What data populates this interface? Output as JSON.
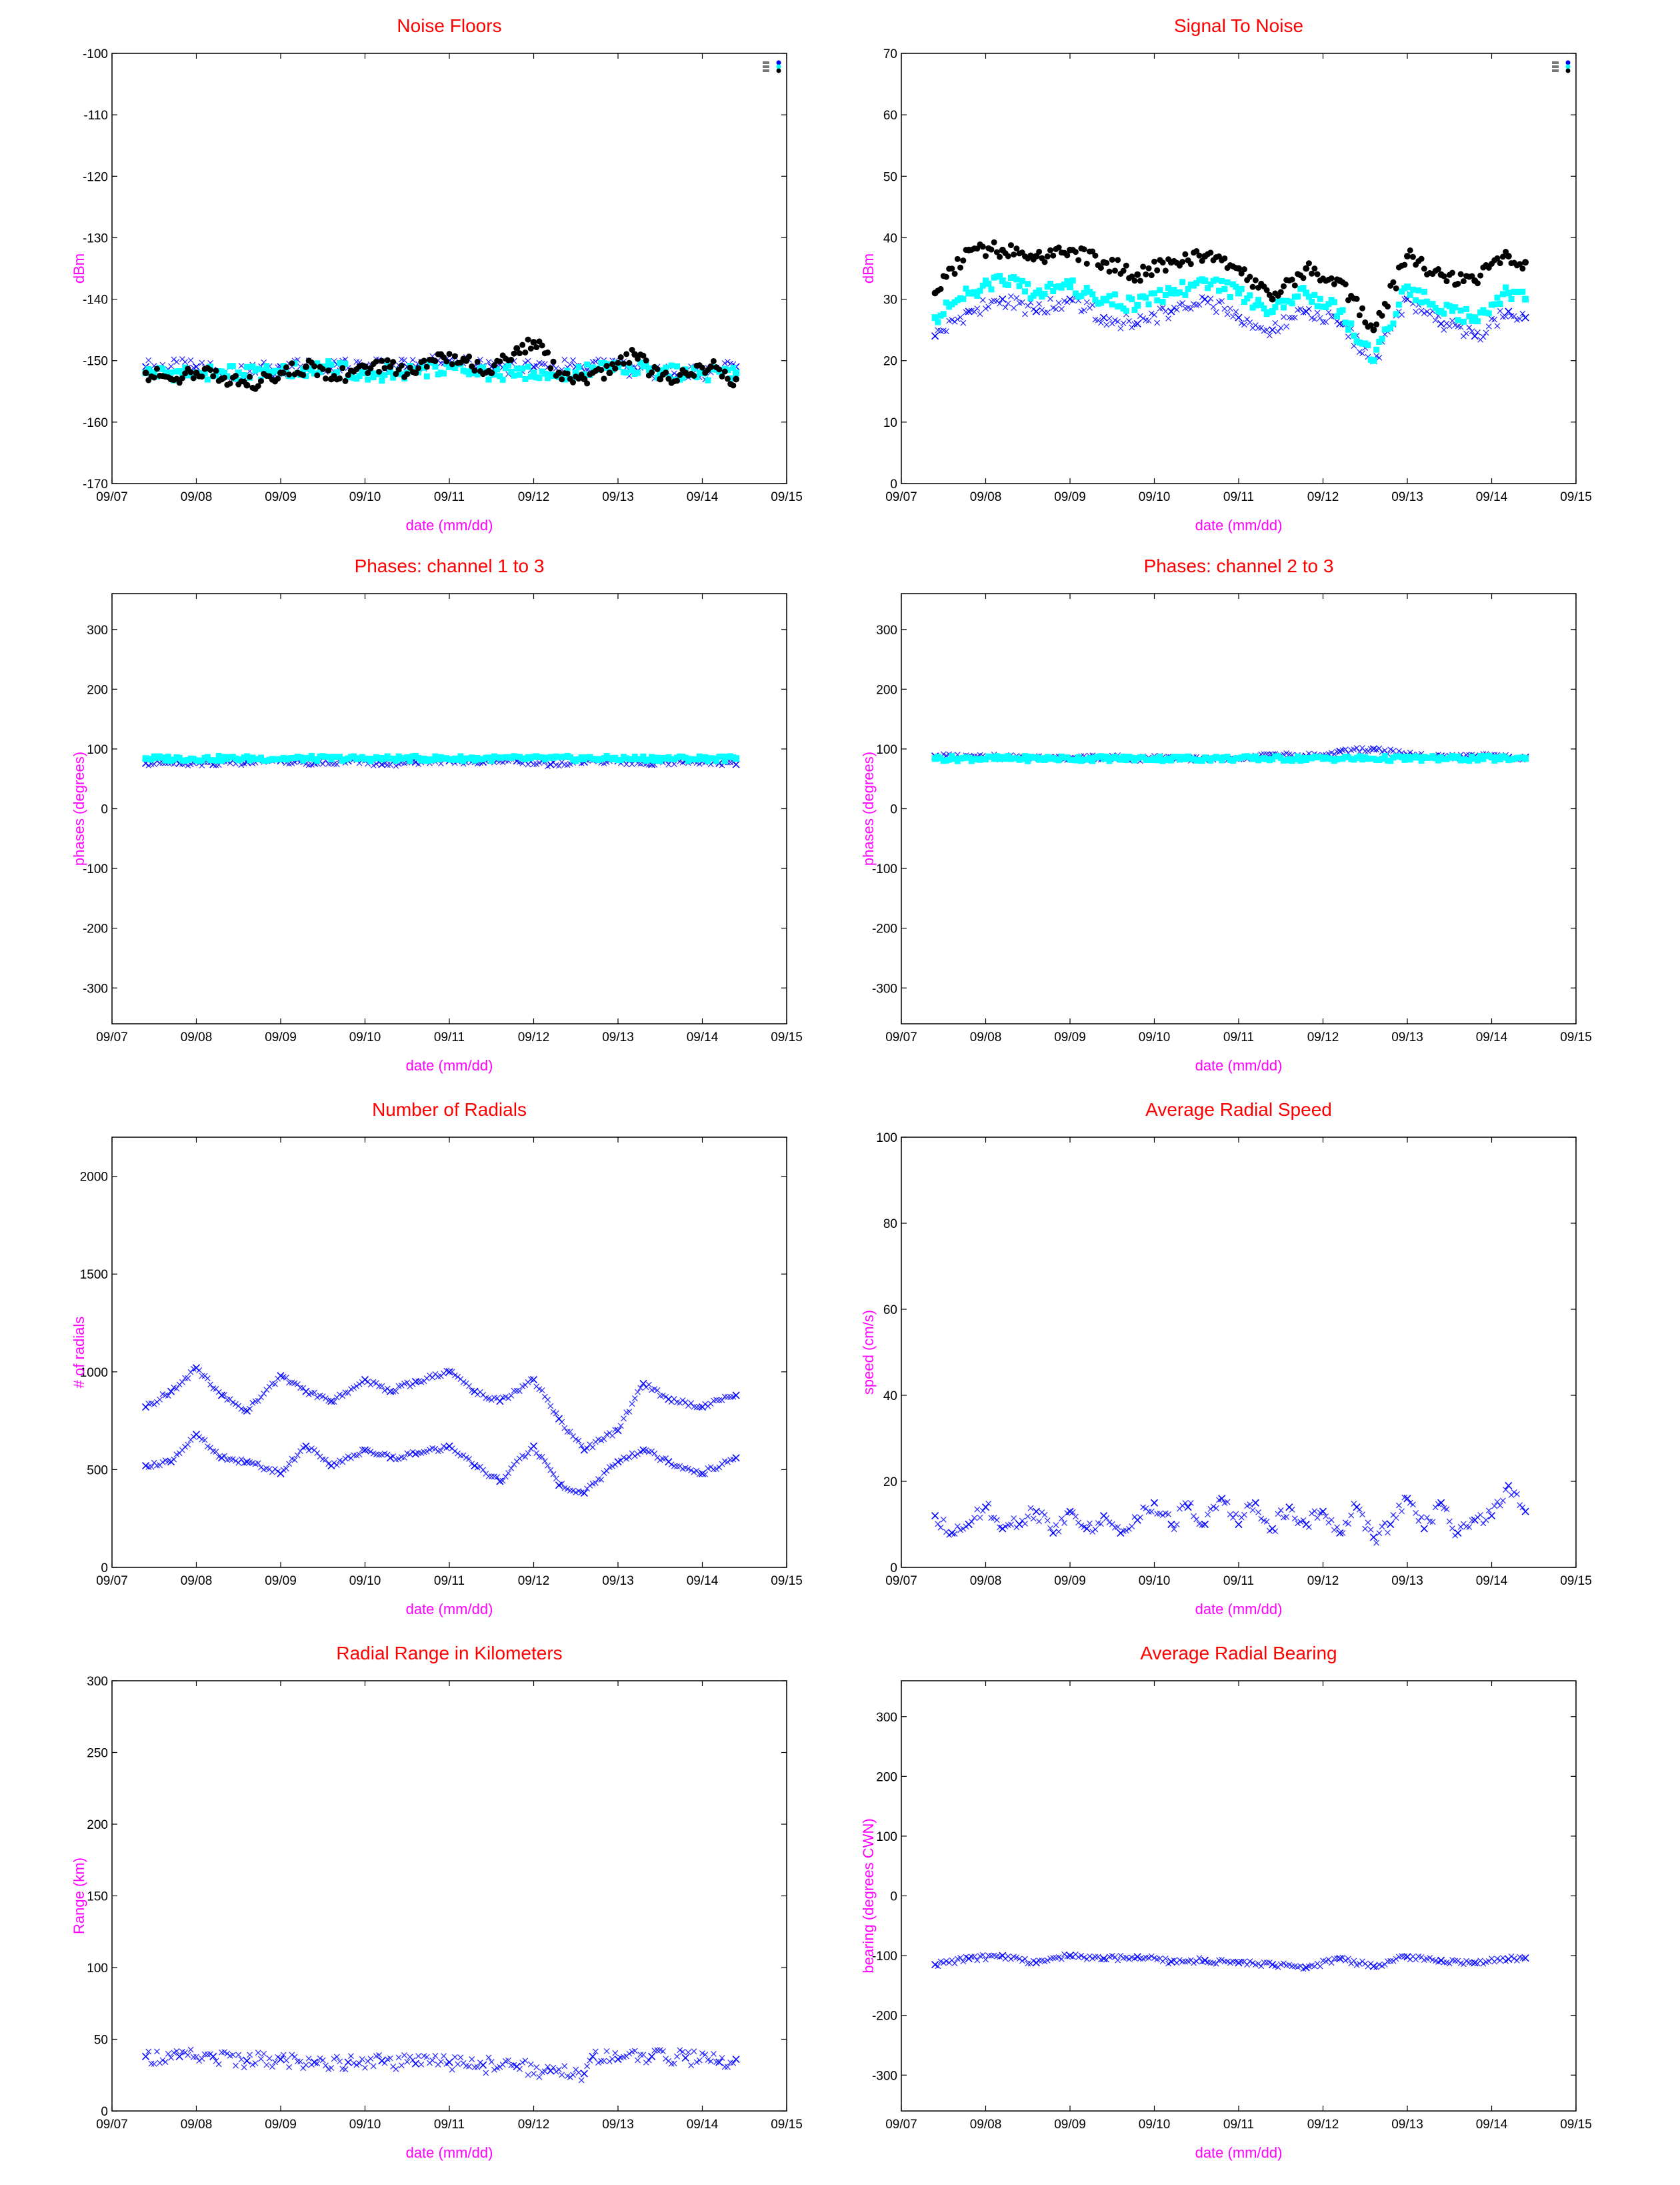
{
  "colors": {
    "title": "#ff0000",
    "axis_label": "#ff00ff",
    "black_series": "#000000",
    "cyan_series": "#00ffff",
    "blue_series": "#0000ff"
  },
  "chart_data": [
    {
      "type": "scatter",
      "title": "Noise Floors",
      "xlabel": "date (mm/dd)",
      "ylabel": "dBm",
      "xlim": [
        "09/07",
        "09/15"
      ],
      "xticks": [
        "09/07",
        "09/08",
        "09/09",
        "09/10",
        "09/11",
        "09/12",
        "09/13",
        "09/14",
        "09/15"
      ],
      "ylim": [
        -170,
        -100
      ],
      "yticks": [
        -170,
        -160,
        -150,
        -140,
        -130,
        -120,
        -110,
        -100
      ],
      "grid": false,
      "legend": "top-right",
      "series": [
        {
          "color": "#0000ff",
          "marker": "x",
          "x": [
            "09/07.4",
            "09/08",
            "09/08.5",
            "09/09",
            "09/09.5",
            "09/10",
            "09/10.5",
            "09/11",
            "09/11.5",
            "09/12",
            "09/12.5",
            "09/13",
            "09/13.5",
            "09/14",
            "09/14.4"
          ],
          "y": [
            -151,
            -151,
            -152,
            -151,
            -151,
            -151,
            -151,
            -150,
            -151,
            -151,
            -151,
            -151,
            -152,
            -152,
            -151
          ]
        },
        {
          "color": "#00ffff",
          "marker": "s",
          "x": [
            "09/07.4",
            "09/08",
            "09/08.5",
            "09/09",
            "09/09.5",
            "09/10",
            "09/10.5",
            "09/11",
            "09/11.5",
            "09/12",
            "09/12.5",
            "09/13",
            "09/13.5",
            "09/14",
            "09/14.4"
          ],
          "y": [
            -152,
            -152,
            -152,
            -152,
            -151,
            -152,
            -152,
            -151,
            -152,
            -152,
            -152,
            -151,
            -152,
            -152,
            -152
          ]
        },
        {
          "color": "#000000",
          "marker": "o",
          "x": [
            "09/07.4",
            "09/07.7",
            "09/08",
            "09/08.3",
            "09/08.6",
            "09/09",
            "09/09.3",
            "09/09.6",
            "09/10",
            "09/10.3",
            "09/10.6",
            "09/10.9",
            "09/11.2",
            "09/11.5",
            "09/11.8",
            "09/12",
            "09/12.3",
            "09/12.6",
            "09/12.9",
            "09/13.2",
            "09/13.5",
            "09/13.8",
            "09/14.1",
            "09/14.4"
          ],
          "y": [
            -152,
            -153,
            -152,
            -153,
            -154,
            -152,
            -151,
            -153,
            -151,
            -151,
            -152,
            -149,
            -150,
            -152,
            -148,
            -147,
            -152,
            -153,
            -152,
            -149,
            -153,
            -152,
            -151,
            -153
          ]
        }
      ]
    },
    {
      "type": "scatter",
      "title": "Signal To Noise",
      "xlabel": "date (mm/dd)",
      "ylabel": "dBm",
      "xlim": [
        "09/07",
        "09/15"
      ],
      "xticks": [
        "09/07",
        "09/08",
        "09/09",
        "09/10",
        "09/11",
        "09/12",
        "09/13",
        "09/14",
        "09/15"
      ],
      "ylim": [
        0,
        70
      ],
      "yticks": [
        0,
        10,
        20,
        30,
        40,
        50,
        60,
        70
      ],
      "grid": false,
      "legend": "top-right",
      "series": [
        {
          "color": "#0000ff",
          "marker": "x",
          "x": [
            "09/07.4",
            "09/07.8",
            "09/08.2",
            "09/08.6",
            "09/09",
            "09/09.4",
            "09/09.8",
            "09/10.2",
            "09/10.6",
            "09/11",
            "09/11.4",
            "09/11.8",
            "09/12.2",
            "09/12.6",
            "09/13",
            "09/13.4",
            "09/13.8",
            "09/14.2",
            "09/14.4"
          ],
          "y": [
            24,
            28,
            30,
            28,
            30,
            27,
            26,
            28,
            30,
            27,
            25,
            28,
            26,
            20,
            30,
            26,
            24,
            28,
            27
          ]
        },
        {
          "color": "#00ffff",
          "marker": "s",
          "x": [
            "09/07.4",
            "09/07.8",
            "09/08.2",
            "09/08.6",
            "09/09",
            "09/09.4",
            "09/09.8",
            "09/10.2",
            "09/10.6",
            "09/11",
            "09/11.4",
            "09/11.8",
            "09/12.2",
            "09/12.6",
            "09/13",
            "09/13.4",
            "09/13.8",
            "09/14.2",
            "09/14.4"
          ],
          "y": [
            27,
            31,
            33,
            31,
            32,
            30,
            29,
            31,
            33,
            31,
            28,
            31,
            28,
            20,
            32,
            28,
            27,
            31,
            30
          ]
        },
        {
          "color": "#000000",
          "marker": "o",
          "x": [
            "09/07.4",
            "09/07.8",
            "09/08.2",
            "09/08.6",
            "09/09",
            "09/09.4",
            "09/09.8",
            "09/10.2",
            "09/10.6",
            "09/11",
            "09/11.4",
            "09/11.8",
            "09/12.2",
            "09/12.6",
            "09/13",
            "09/13.4",
            "09/13.8",
            "09/14.2",
            "09/14.4"
          ],
          "y": [
            31,
            38,
            38,
            37,
            38,
            36,
            34,
            36,
            37,
            35,
            30,
            35,
            33,
            25,
            37,
            34,
            33,
            37,
            36
          ]
        }
      ]
    },
    {
      "type": "scatter",
      "title": "Phases: channel 1 to 3",
      "xlabel": "date (mm/dd)",
      "ylabel": "phases (degrees)",
      "xlim": [
        "09/07",
        "09/15"
      ],
      "xticks": [
        "09/07",
        "09/08",
        "09/09",
        "09/10",
        "09/11",
        "09/12",
        "09/13",
        "09/14",
        "09/15"
      ],
      "ylim": [
        -360,
        360
      ],
      "yticks": [
        -300,
        -200,
        -100,
        0,
        100,
        200,
        300
      ],
      "grid": false,
      "series": [
        {
          "color": "#0000ff",
          "marker": "x",
          "x": [
            "09/07.4",
            "09/07.8",
            "09/08.2",
            "09/08.6",
            "09/09",
            "09/09.4",
            "09/09.8",
            "09/10.2",
            "09/10.6",
            "09/11",
            "09/11.4",
            "09/11.8",
            "09/12.2",
            "09/12.6",
            "09/13",
            "09/13.4",
            "09/13.8",
            "09/14.2",
            "09/14.4"
          ],
          "y": [
            76,
            76,
            74,
            78,
            80,
            76,
            80,
            74,
            78,
            80,
            78,
            80,
            74,
            78,
            80,
            74,
            80,
            76,
            74
          ]
        },
        {
          "color": "#00ffff",
          "marker": "s",
          "x": [
            "09/07.4",
            "09/14.4"
          ],
          "y": [
            84,
            84
          ]
        }
      ]
    },
    {
      "type": "scatter",
      "title": "Phases: channel 2 to 3",
      "xlabel": "date (mm/dd)",
      "ylabel": "phases (degrees)",
      "xlim": [
        "09/07",
        "09/15"
      ],
      "xticks": [
        "09/07",
        "09/08",
        "09/09",
        "09/10",
        "09/11",
        "09/12",
        "09/13",
        "09/14",
        "09/15"
      ],
      "ylim": [
        -360,
        360
      ],
      "yticks": [
        -300,
        -200,
        -100,
        0,
        100,
        200,
        300
      ],
      "grid": false,
      "series": [
        {
          "color": "#0000ff",
          "marker": "x",
          "x": [
            "09/07.4",
            "09/07.8",
            "09/08.2",
            "09/08.6",
            "09/09",
            "09/09.4",
            "09/09.8",
            "09/10.2",
            "09/10.6",
            "09/11",
            "09/11.4",
            "09/11.8",
            "09/12.2",
            "09/12.6",
            "09/13",
            "09/13.4",
            "09/13.8",
            "09/14.2",
            "09/14.4"
          ],
          "y": [
            88,
            87,
            86,
            86,
            84,
            86,
            84,
            85,
            82,
            84,
            90,
            88,
            96,
            100,
            90,
            88,
            88,
            86,
            86
          ]
        },
        {
          "color": "#00ffff",
          "marker": "s",
          "x": [
            "09/07.4",
            "09/14.4"
          ],
          "y": [
            84,
            84
          ]
        }
      ]
    },
    {
      "type": "scatter",
      "title": "Number of Radials",
      "xlabel": "date (mm/dd)",
      "ylabel": "# of radials",
      "xlim": [
        "09/07",
        "09/15"
      ],
      "xticks": [
        "09/07",
        "09/08",
        "09/09",
        "09/10",
        "09/11",
        "09/12",
        "09/13",
        "09/14",
        "09/15"
      ],
      "ylim": [
        0,
        2200
      ],
      "yticks": [
        0,
        500,
        1000,
        1500,
        2000
      ],
      "grid": false,
      "series": [
        {
          "color": "#0000ff",
          "marker": "x",
          "x": [
            "09/07.4",
            "09/07.7",
            "09/08",
            "09/08.3",
            "09/08.6",
            "09/09",
            "09/09.3",
            "09/09.6",
            "09/10",
            "09/10.3",
            "09/10.6",
            "09/11",
            "09/11.3",
            "09/11.6",
            "09/12",
            "09/12.3",
            "09/12.6",
            "09/13",
            "09/13.3",
            "09/13.6",
            "09/14",
            "09/14.4"
          ],
          "y": [
            820,
            900,
            1020,
            880,
            800,
            980,
            900,
            850,
            960,
            900,
            950,
            1000,
            900,
            850,
            960,
            760,
            600,
            700,
            940,
            860,
            820,
            880
          ]
        },
        {
          "color": "#0000ff",
          "marker": "x",
          "x": [
            "09/07.4",
            "09/07.7",
            "09/08",
            "09/08.3",
            "09/08.6",
            "09/09",
            "09/09.3",
            "09/09.6",
            "09/10",
            "09/10.3",
            "09/10.6",
            "09/11",
            "09/11.3",
            "09/11.6",
            "09/12",
            "09/12.3",
            "09/12.6",
            "09/13",
            "09/13.3",
            "09/13.6",
            "09/14",
            "09/14.4"
          ],
          "y": [
            520,
            540,
            680,
            560,
            540,
            480,
            620,
            520,
            600,
            560,
            580,
            620,
            520,
            440,
            620,
            420,
            380,
            540,
            600,
            540,
            480,
            560
          ]
        }
      ]
    },
    {
      "type": "scatter",
      "title": "Average Radial Speed",
      "xlabel": "date (mm/dd)",
      "ylabel": "speed (cm/s)",
      "xlim": [
        "09/07",
        "09/15"
      ],
      "xticks": [
        "09/07",
        "09/08",
        "09/09",
        "09/10",
        "09/11",
        "09/12",
        "09/13",
        "09/14",
        "09/15"
      ],
      "ylim": [
        0,
        100
      ],
      "yticks": [
        0,
        20,
        40,
        60,
        80,
        100
      ],
      "grid": false,
      "series": [
        {
          "color": "#0000ff",
          "marker": "x",
          "x": [
            "09/07.4",
            "09/07.6",
            "09/07.8",
            "09/08",
            "09/08.2",
            "09/08.4",
            "09/08.6",
            "09/08.8",
            "09/09",
            "09/09.2",
            "09/09.4",
            "09/09.6",
            "09/09.8",
            "09/10",
            "09/10.2",
            "09/10.4",
            "09/10.6",
            "09/10.8",
            "09/11",
            "09/11.2",
            "09/11.4",
            "09/11.6",
            "09/11.8",
            "09/12",
            "09/12.2",
            "09/12.4",
            "09/12.6",
            "09/12.8",
            "09/13",
            "09/13.2",
            "09/13.4",
            "09/13.6",
            "09/13.8",
            "09/14",
            "09/14.2",
            "09/14.4"
          ],
          "y": [
            12,
            8,
            10,
            14,
            9,
            10,
            13,
            8,
            13,
            9,
            12,
            8,
            11,
            15,
            10,
            14,
            10,
            16,
            10,
            15,
            9,
            14,
            10,
            13,
            8,
            14,
            7,
            10,
            16,
            9,
            15,
            8,
            11,
            12,
            19,
            13
          ]
        }
      ]
    },
    {
      "type": "scatter",
      "title": "Radial Range in Kilometers",
      "xlabel": "date (mm/dd)",
      "ylabel": "Range (km)",
      "xlim": [
        "09/07",
        "09/15"
      ],
      "xticks": [
        "09/07",
        "09/08",
        "09/09",
        "09/10",
        "09/11",
        "09/12",
        "09/13",
        "09/14",
        "09/15"
      ],
      "ylim": [
        0,
        300
      ],
      "yticks": [
        0,
        50,
        100,
        150,
        200,
        250,
        300
      ],
      "grid": false,
      "series": [
        {
          "color": "#0000ff",
          "marker": "x",
          "x": [
            "09/07.4",
            "09/07.8",
            "09/08.2",
            "09/08.6",
            "09/09",
            "09/09.4",
            "09/09.8",
            "09/10.2",
            "09/10.6",
            "09/11",
            "09/11.4",
            "09/11.8",
            "09/12.2",
            "09/12.6",
            "09/12.7",
            "09/13",
            "09/13.4",
            "09/13.8",
            "09/14.2",
            "09/14.4"
          ],
          "y": [
            38,
            38,
            38,
            35,
            36,
            34,
            34,
            35,
            33,
            34,
            32,
            31,
            28,
            26,
            38,
            36,
            38,
            37,
            34,
            36
          ]
        }
      ]
    },
    {
      "type": "scatter",
      "title": "Average Radial Bearing",
      "xlabel": "date (mm/dd)",
      "ylabel": "bearing (degrees CWN)",
      "xlim": [
        "09/07",
        "09/15"
      ],
      "xticks": [
        "09/07",
        "09/08",
        "09/09",
        "09/10",
        "09/11",
        "09/12",
        "09/13",
        "09/14",
        "09/15"
      ],
      "ylim": [
        -360,
        360
      ],
      "yticks": [
        -300,
        -200,
        -100,
        0,
        100,
        200,
        300
      ],
      "grid": false,
      "series": [
        {
          "color": "#0000ff",
          "marker": "x",
          "x": [
            "09/07.4",
            "09/07.8",
            "09/08.2",
            "09/08.6",
            "09/09",
            "09/09.4",
            "09/09.8",
            "09/10.2",
            "09/10.6",
            "09/11",
            "09/11.4",
            "09/11.8",
            "09/12.2",
            "09/12.6",
            "09/13",
            "09/13.4",
            "09/13.8",
            "09/14.2",
            "09/14.4"
          ],
          "y": [
            -115,
            -105,
            -100,
            -112,
            -100,
            -105,
            -102,
            -110,
            -108,
            -112,
            -115,
            -120,
            -105,
            -118,
            -102,
            -108,
            -112,
            -106,
            -104
          ]
        }
      ]
    }
  ]
}
